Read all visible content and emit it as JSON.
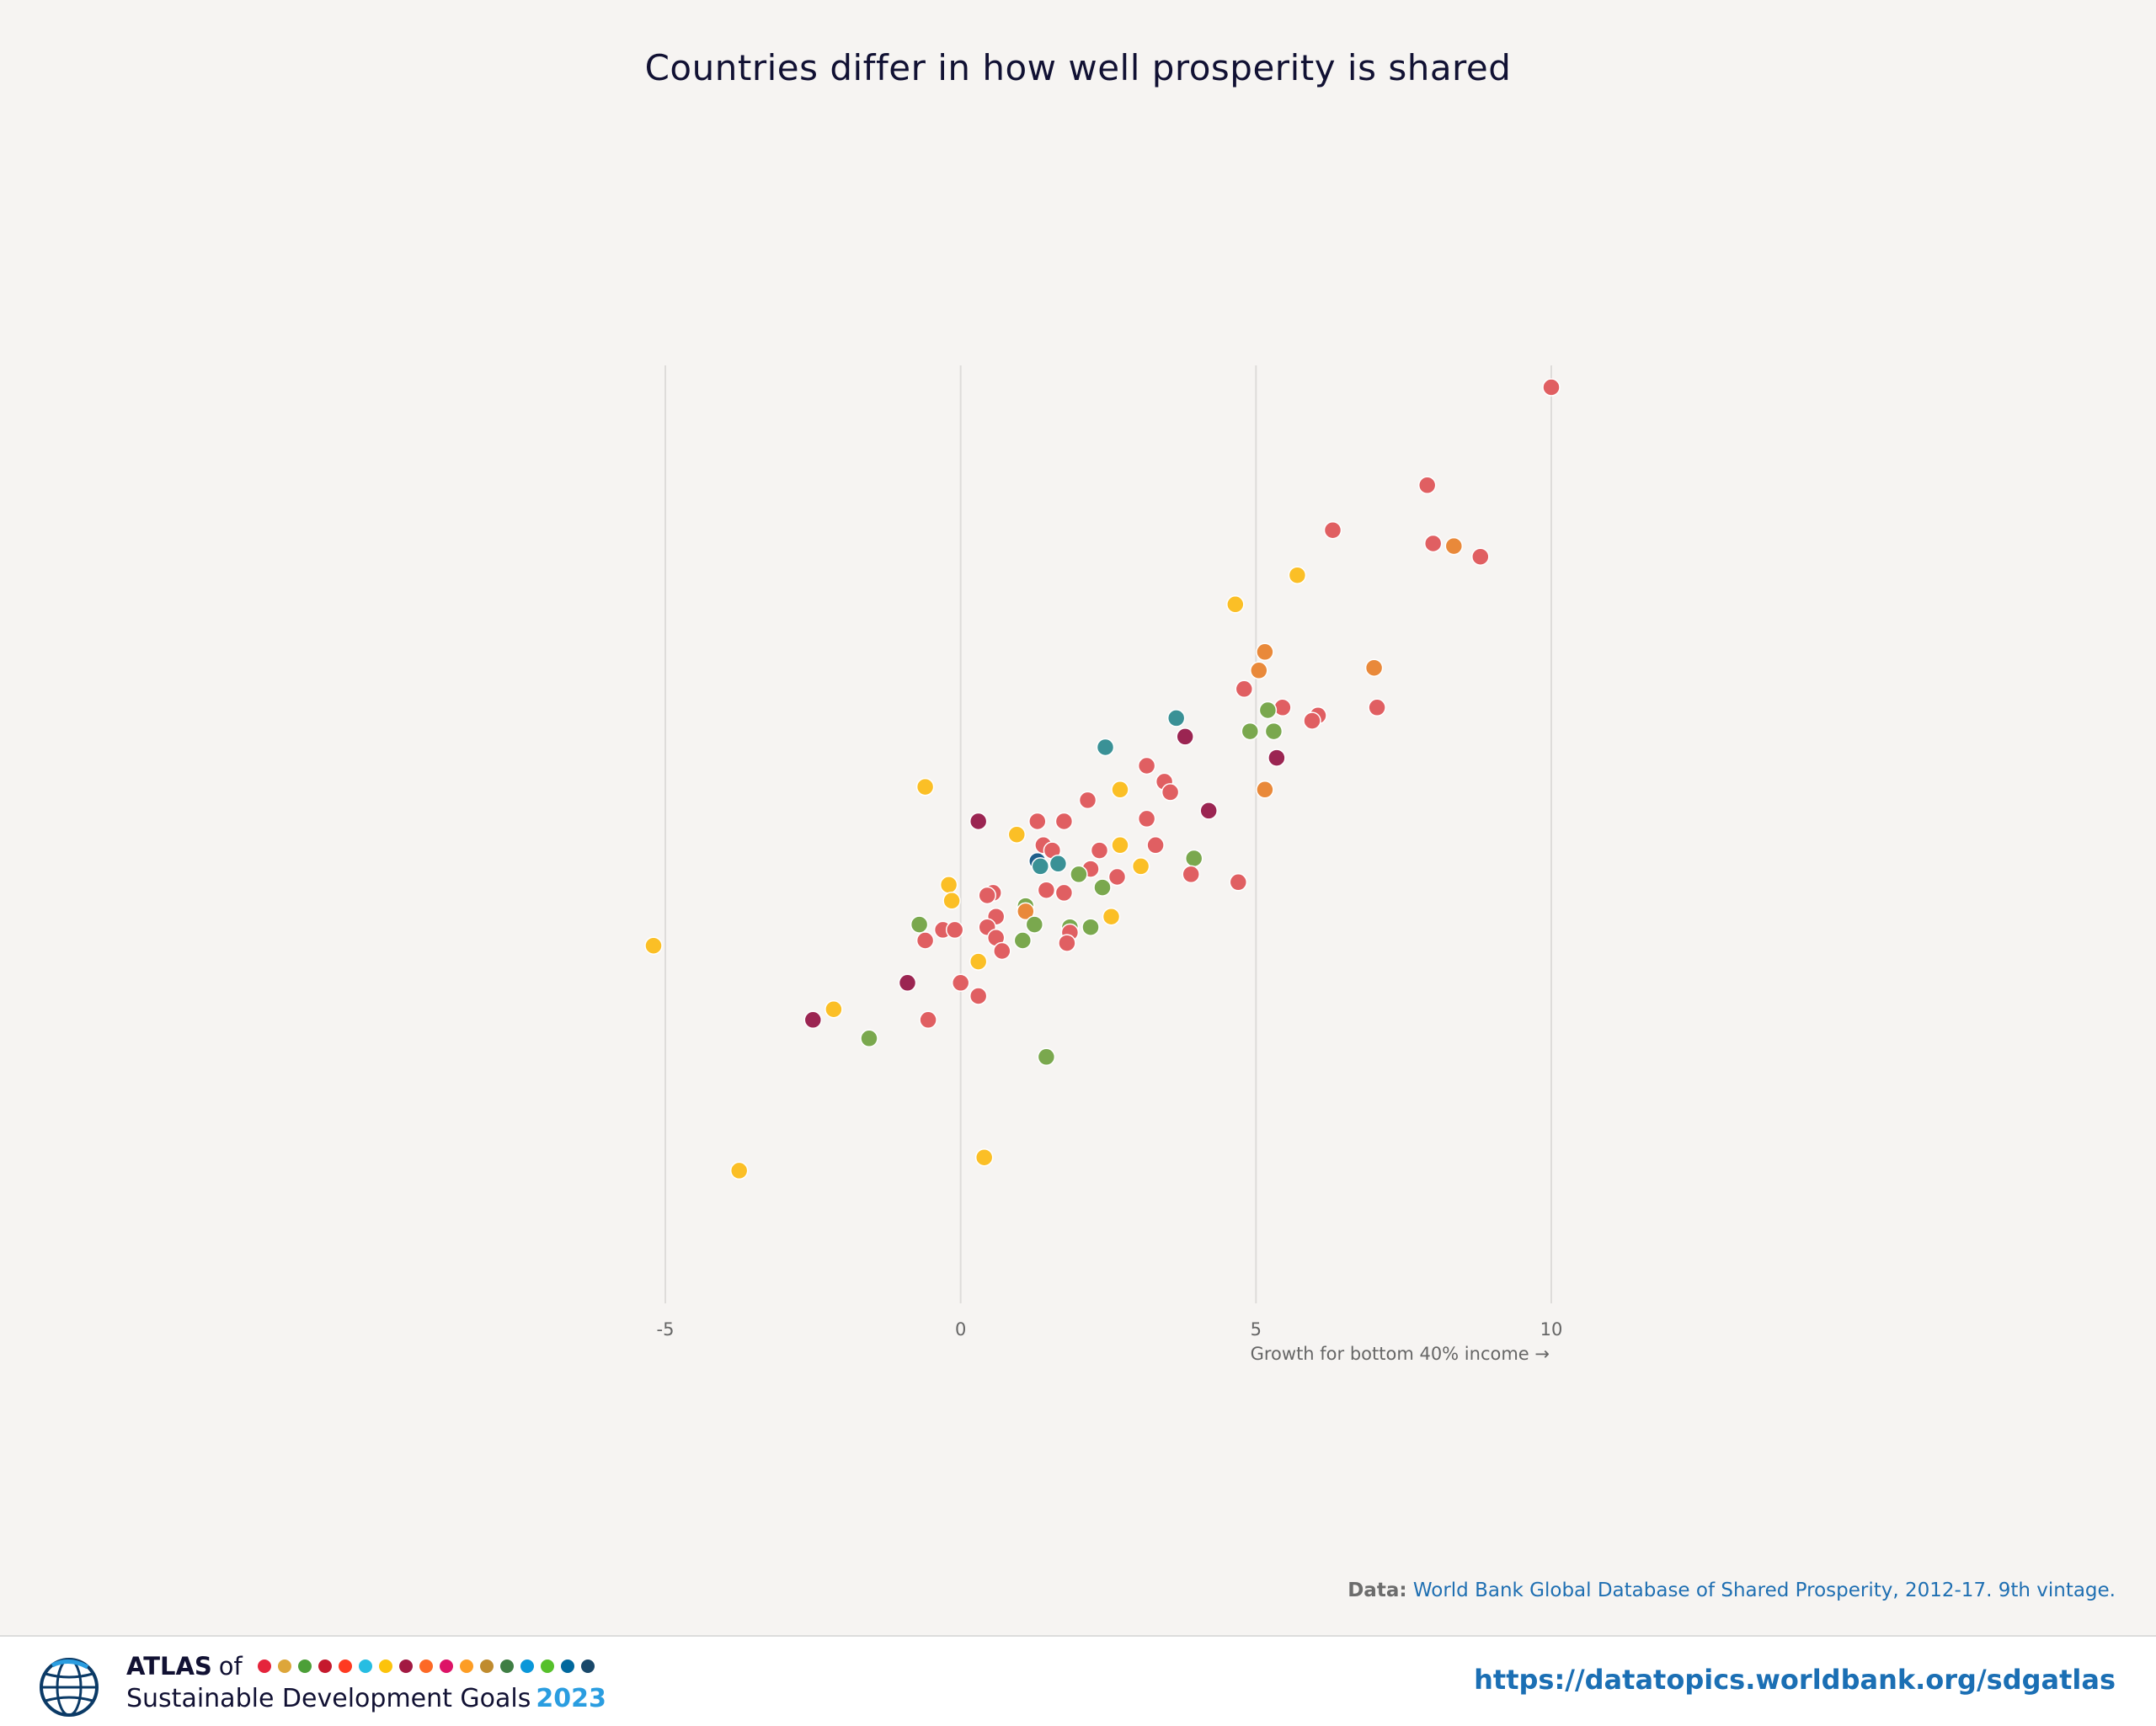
{
  "title": "Countries differ in how well prosperity is shared",
  "source": {
    "prefix": "Data:",
    "text": "World Bank Global Database of Shared Prosperity, 2012-17. 9th vintage."
  },
  "footer": {
    "atlas": "ATLAS",
    "of": "of",
    "subtitle": "Sustainable Development Goals",
    "year": "2023",
    "url": "https://datatopics.worldbank.org/sdgatlas",
    "sdg_colors": [
      "#e5243b",
      "#dda63a",
      "#4c9f38",
      "#c5192d",
      "#ff3a21",
      "#26bde2",
      "#fcc30b",
      "#a21942",
      "#fd6925",
      "#dd1367",
      "#fd9d24",
      "#bf8b2e",
      "#3f7e44",
      "#0a97d9",
      "#56c02b",
      "#00689d",
      "#19486a"
    ]
  },
  "chart_data": {
    "type": "scatter",
    "xlabel": "Growth for bottom 40% income →",
    "ylabel": "",
    "xlim": [
      -5,
      10
    ],
    "xticks": [
      -5,
      0,
      5,
      10
    ],
    "grid": "vertical",
    "legend": "none",
    "colors": {
      "red": "#e05f62",
      "yellow": "#fbbf26",
      "green": "#7aa84e",
      "maroon": "#9b2552",
      "orange": "#e9893a",
      "teal": "#3a9196",
      "navy": "#1f5f8b"
    },
    "points": [
      {
        "x": 10.0,
        "y": 10.0,
        "c": "red"
      },
      {
        "x": 7.9,
        "y": 8.15,
        "c": "red"
      },
      {
        "x": 6.3,
        "y": 7.3,
        "c": "red"
      },
      {
        "x": 8.0,
        "y": 7.05,
        "c": "red"
      },
      {
        "x": 8.35,
        "y": 7.0,
        "c": "orange"
      },
      {
        "x": 8.8,
        "y": 6.8,
        "c": "red"
      },
      {
        "x": 5.7,
        "y": 6.45,
        "c": "yellow"
      },
      {
        "x": 4.65,
        "y": 5.9,
        "c": "yellow"
      },
      {
        "x": 5.15,
        "y": 5.0,
        "c": "orange"
      },
      {
        "x": 5.05,
        "y": 4.65,
        "c": "orange"
      },
      {
        "x": 7.0,
        "y": 4.7,
        "c": "orange"
      },
      {
        "x": 4.8,
        "y": 4.3,
        "c": "red"
      },
      {
        "x": 5.45,
        "y": 3.95,
        "c": "red"
      },
      {
        "x": 5.2,
        "y": 3.9,
        "c": "green"
      },
      {
        "x": 6.05,
        "y": 3.8,
        "c": "red"
      },
      {
        "x": 5.95,
        "y": 3.7,
        "c": "red"
      },
      {
        "x": 7.05,
        "y": 3.95,
        "c": "red"
      },
      {
        "x": 3.65,
        "y": 3.75,
        "c": "teal"
      },
      {
        "x": 4.9,
        "y": 3.5,
        "c": "green"
      },
      {
        "x": 5.3,
        "y": 3.5,
        "c": "green"
      },
      {
        "x": 3.8,
        "y": 3.4,
        "c": "maroon"
      },
      {
        "x": 2.45,
        "y": 3.2,
        "c": "teal"
      },
      {
        "x": 5.35,
        "y": 3.0,
        "c": "maroon"
      },
      {
        "x": 3.15,
        "y": 2.85,
        "c": "red"
      },
      {
        "x": 3.45,
        "y": 2.55,
        "c": "red"
      },
      {
        "x": 3.55,
        "y": 2.35,
        "c": "red"
      },
      {
        "x": 2.7,
        "y": 2.4,
        "c": "yellow"
      },
      {
        "x": -0.6,
        "y": 2.45,
        "c": "yellow"
      },
      {
        "x": 2.15,
        "y": 2.2,
        "c": "red"
      },
      {
        "x": 5.15,
        "y": 2.4,
        "c": "orange"
      },
      {
        "x": 4.2,
        "y": 2.0,
        "c": "maroon"
      },
      {
        "x": 0.3,
        "y": 1.8,
        "c": "maroon"
      },
      {
        "x": 1.3,
        "y": 1.8,
        "c": "red"
      },
      {
        "x": 1.75,
        "y": 1.8,
        "c": "red"
      },
      {
        "x": 3.15,
        "y": 1.85,
        "c": "red"
      },
      {
        "x": 0.95,
        "y": 1.55,
        "c": "yellow"
      },
      {
        "x": 1.4,
        "y": 1.35,
        "c": "red"
      },
      {
        "x": 1.55,
        "y": 1.25,
        "c": "red"
      },
      {
        "x": 2.35,
        "y": 1.25,
        "c": "red"
      },
      {
        "x": 2.7,
        "y": 1.35,
        "c": "yellow"
      },
      {
        "x": 3.3,
        "y": 1.35,
        "c": "red"
      },
      {
        "x": 1.3,
        "y": 1.05,
        "c": "navy"
      },
      {
        "x": 1.35,
        "y": 0.95,
        "c": "teal"
      },
      {
        "x": 1.65,
        "y": 1.0,
        "c": "teal"
      },
      {
        "x": 3.95,
        "y": 1.1,
        "c": "green"
      },
      {
        "x": 2.2,
        "y": 0.9,
        "c": "red"
      },
      {
        "x": 2.0,
        "y": 0.8,
        "c": "green"
      },
      {
        "x": 2.65,
        "y": 0.75,
        "c": "red"
      },
      {
        "x": 3.05,
        "y": 0.95,
        "c": "yellow"
      },
      {
        "x": 3.9,
        "y": 0.8,
        "c": "red"
      },
      {
        "x": 4.7,
        "y": 0.65,
        "c": "red"
      },
      {
        "x": -0.2,
        "y": 0.6,
        "c": "yellow"
      },
      {
        "x": 2.4,
        "y": 0.55,
        "c": "green"
      },
      {
        "x": 1.45,
        "y": 0.5,
        "c": "red"
      },
      {
        "x": 1.75,
        "y": 0.45,
        "c": "red"
      },
      {
        "x": 0.55,
        "y": 0.45,
        "c": "red"
      },
      {
        "x": 0.45,
        "y": 0.4,
        "c": "red"
      },
      {
        "x": -0.15,
        "y": 0.3,
        "c": "yellow"
      },
      {
        "x": 1.1,
        "y": 0.2,
        "c": "green"
      },
      {
        "x": 1.1,
        "y": 0.1,
        "c": "orange"
      },
      {
        "x": 0.6,
        "y": 0.0,
        "c": "red"
      },
      {
        "x": 2.55,
        "y": 0.0,
        "c": "yellow"
      },
      {
        "x": -0.7,
        "y": -0.15,
        "c": "green"
      },
      {
        "x": -0.3,
        "y": -0.25,
        "c": "red"
      },
      {
        "x": -0.1,
        "y": -0.25,
        "c": "red"
      },
      {
        "x": 0.45,
        "y": -0.2,
        "c": "red"
      },
      {
        "x": 1.25,
        "y": -0.15,
        "c": "green"
      },
      {
        "x": 1.85,
        "y": -0.2,
        "c": "green"
      },
      {
        "x": 2.2,
        "y": -0.2,
        "c": "green"
      },
      {
        "x": 1.85,
        "y": -0.3,
        "c": "red"
      },
      {
        "x": -0.6,
        "y": -0.45,
        "c": "red"
      },
      {
        "x": 0.6,
        "y": -0.4,
        "c": "red"
      },
      {
        "x": 1.05,
        "y": -0.45,
        "c": "green"
      },
      {
        "x": 1.8,
        "y": -0.5,
        "c": "red"
      },
      {
        "x": 0.7,
        "y": -0.65,
        "c": "red"
      },
      {
        "x": 0.3,
        "y": -0.85,
        "c": "yellow"
      },
      {
        "x": -5.2,
        "y": -0.55,
        "c": "yellow"
      },
      {
        "x": -0.9,
        "y": -1.25,
        "c": "maroon"
      },
      {
        "x": 0.0,
        "y": -1.25,
        "c": "red"
      },
      {
        "x": 0.3,
        "y": -1.5,
        "c": "red"
      },
      {
        "x": -2.15,
        "y": -1.75,
        "c": "yellow"
      },
      {
        "x": -2.5,
        "y": -1.95,
        "c": "maroon"
      },
      {
        "x": -0.55,
        "y": -1.95,
        "c": "red"
      },
      {
        "x": -1.55,
        "y": -2.3,
        "c": "green"
      },
      {
        "x": 1.45,
        "y": -2.65,
        "c": "green"
      },
      {
        "x": 0.4,
        "y": -4.55,
        "c": "yellow"
      },
      {
        "x": -3.75,
        "y": -4.8,
        "c": "yellow"
      }
    ]
  }
}
